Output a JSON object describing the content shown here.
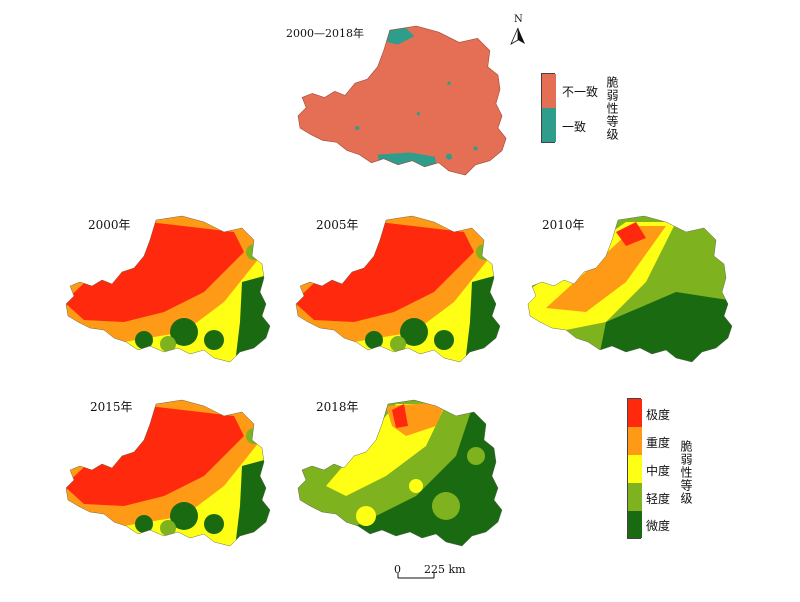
{
  "top_map": {
    "label": "2000—2018年",
    "north": "N",
    "legend_title": "脆弱性等级",
    "legend": [
      {
        "label": "不一致",
        "color": "#E46F55"
      },
      {
        "label": "一致",
        "color": "#2E9D8C"
      }
    ]
  },
  "panels": [
    {
      "label": "2000年",
      "scheme": "severe"
    },
    {
      "label": "2005年",
      "scheme": "severe"
    },
    {
      "label": "2010年",
      "scheme": "mild"
    },
    {
      "label": "2015年",
      "scheme": "severe"
    },
    {
      "label": "2018年",
      "scheme": "mixed"
    }
  ],
  "legend": {
    "title": "脆弱性等级",
    "items": [
      {
        "label": "极度",
        "color": "#FF2A0E"
      },
      {
        "label": "重度",
        "color": "#FF9A17"
      },
      {
        "label": "中度",
        "color": "#FFFF16"
      },
      {
        "label": "轻度",
        "color": "#7FB21F"
      },
      {
        "label": "微度",
        "color": "#1A6A12"
      }
    ]
  },
  "scale": {
    "zero": "0",
    "value": "225 km"
  }
}
